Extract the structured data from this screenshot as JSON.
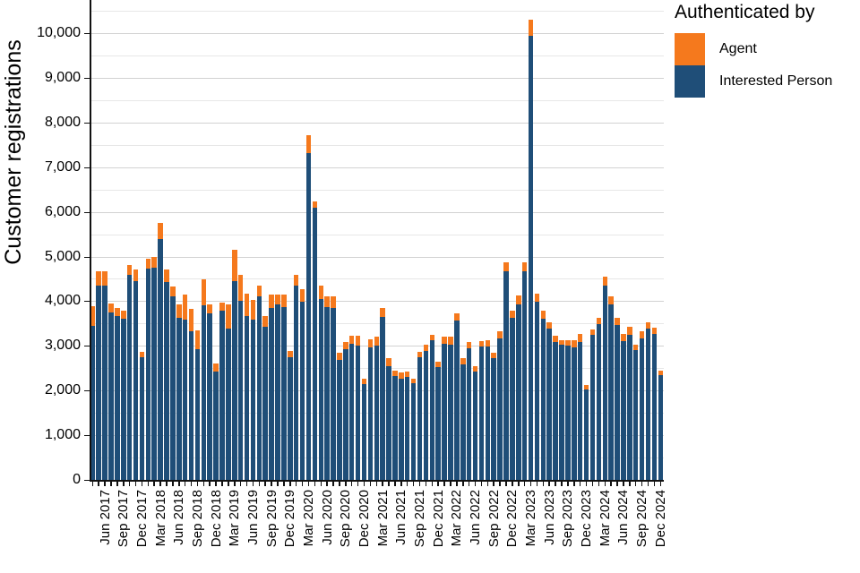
{
  "chart_data": {
    "type": "bar",
    "stacked": true,
    "title": "",
    "ylabel": "Customer registrations",
    "legend_title": "Authenticated by",
    "ylim": [
      0,
      10500
    ],
    "y_tick_step": 1000,
    "grid_step": 500,
    "x_tick_label_start": 2,
    "x_tick_label_every": 3,
    "x": [
      "Apr 2017",
      "May 2017",
      "Jun 2017",
      "Jul 2017",
      "Aug 2017",
      "Sep 2017",
      "Oct 2017",
      "Nov 2017",
      "Dec 2017",
      "Jan 2018",
      "Feb 2018",
      "Mar 2018",
      "Apr 2018",
      "May 2018",
      "Jun 2018",
      "Jul 2018",
      "Aug 2018",
      "Sep 2018",
      "Oct 2018",
      "Nov 2018",
      "Dec 2018",
      "Jan 2019",
      "Feb 2019",
      "Mar 2019",
      "Apr 2019",
      "May 2019",
      "Jun 2019",
      "Jul 2019",
      "Aug 2019",
      "Sep 2019",
      "Oct 2019",
      "Nov 2019",
      "Dec 2019",
      "Jan 2020",
      "Feb 2020",
      "Mar 2020",
      "Apr 2020",
      "May 2020",
      "Jun 2020",
      "Jul 2020",
      "Aug 2020",
      "Sep 2020",
      "Oct 2020",
      "Nov 2020",
      "Dec 2020",
      "Jan 2021",
      "Feb 2021",
      "Mar 2021",
      "Apr 2021",
      "May 2021",
      "Jun 2021",
      "Jul 2021",
      "Aug 2021",
      "Sep 2021",
      "Oct 2021",
      "Nov 2021",
      "Dec 2021",
      "Jan 2022",
      "Feb 2022",
      "Mar 2022",
      "Apr 2022",
      "May 2022",
      "Jun 2022",
      "Jul 2022",
      "Aug 2022",
      "Sep 2022",
      "Oct 2022",
      "Nov 2022",
      "Dec 2022",
      "Jan 2023",
      "Feb 2023",
      "Mar 2023",
      "Apr 2023",
      "May 2023",
      "Jun 2023",
      "Jul 2023",
      "Aug 2023",
      "Sep 2023",
      "Oct 2023",
      "Nov 2023",
      "Dec 2023",
      "Jan 2024",
      "Feb 2024",
      "Mar 2024",
      "Apr 2024",
      "May 2024",
      "Jun 2024",
      "Jul 2024",
      "Aug 2024",
      "Sep 2024",
      "Oct 2024",
      "Nov 2024",
      "Dec 2024"
    ],
    "series": [
      {
        "name": "Agent",
        "color": "#f5791d",
        "values": [
          440,
          320,
          320,
          200,
          180,
          190,
          240,
          250,
          120,
          235,
          245,
          375,
          270,
          230,
          315,
          565,
          500,
          435,
          580,
          200,
          180,
          190,
          550,
          700,
          585,
          500,
          445,
          235,
          255,
          285,
          235,
          280,
          145,
          245,
          280,
          415,
          130,
          285,
          240,
          255,
          165,
          165,
          180,
          235,
          120,
          185,
          200,
          210,
          165,
          135,
          135,
          120,
          110,
          115,
          130,
          135,
          135,
          145,
          165,
          160,
          130,
          130,
          135,
          115,
          150,
          135,
          155,
          200,
          165,
          200,
          200,
          365,
          190,
          165,
          145,
          150,
          115,
          135,
          145,
          180,
          100,
          125,
          150,
          200,
          180,
          170,
          160,
          165,
          135,
          145,
          150,
          140,
          100
        ]
      },
      {
        "name": "Interested Person",
        "color": "#1f4e78",
        "values": [
          3450,
          4340,
          4340,
          3755,
          3670,
          3600,
          4580,
          4450,
          2755,
          4725,
          4755,
          5385,
          4430,
          4105,
          3620,
          3590,
          3320,
          2920,
          3905,
          3735,
          2420,
          3785,
          3385,
          4455,
          4000,
          3675,
          3590,
          4105,
          3420,
          3855,
          3920,
          3875,
          2740,
          4340,
          3985,
          7305,
          6100,
          4055,
          3870,
          3855,
          2690,
          2920,
          3055,
          3000,
          2135,
          2965,
          3000,
          3640,
          2555,
          2320,
          2265,
          2300,
          2155,
          2755,
          2890,
          3120,
          2520,
          3055,
          3035,
          3575,
          2590,
          2955,
          2420,
          2985,
          2985,
          2720,
          3165,
          4665,
          3620,
          3920,
          4665,
          9935,
          3985,
          3615,
          3385,
          3085,
          3020,
          3000,
          2975,
          3085,
          2020,
          3240,
          3485,
          4355,
          3920,
          3465,
          3110,
          3255,
          2900,
          3175,
          3385,
          3260,
          2355
        ]
      }
    ],
    "legend_position": "top-right",
    "grid": true
  }
}
